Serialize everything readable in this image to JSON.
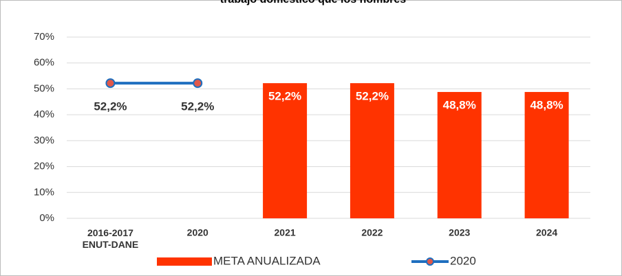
{
  "chart_data": {
    "type": "bar_line",
    "title": "trabajo doméstico que los hombres",
    "categories": [
      "2016-2017 ENUT-DANE",
      "2020",
      "2021",
      "2022",
      "2023",
      "2024"
    ],
    "series": [
      {
        "name": "META ANUALIZADA",
        "type": "bar",
        "color": "#ff3300",
        "values": [
          null,
          null,
          52.2,
          52.2,
          48.8,
          48.8
        ],
        "value_labels": [
          null,
          null,
          "52,2%",
          "52,2%",
          "48,8%",
          "48,8%"
        ]
      },
      {
        "name": "2020",
        "type": "line",
        "color": "#1f6fbf",
        "marker_color": "#e0584a",
        "values": [
          52.2,
          52.2,
          null,
          null,
          null,
          null
        ],
        "value_labels": [
          "52,2%",
          "52,2%",
          null,
          null,
          null,
          null
        ]
      }
    ],
    "ylim": [
      0,
      70
    ],
    "yticks": [
      {
        "value": 0,
        "label": "0%"
      },
      {
        "value": 10,
        "label": "10%"
      },
      {
        "value": 20,
        "label": "20%"
      },
      {
        "value": 30,
        "label": "30%"
      },
      {
        "value": 40,
        "label": "40%"
      },
      {
        "value": 50,
        "label": "50%"
      },
      {
        "value": 60,
        "label": "60%"
      },
      {
        "value": 70,
        "label": "70%"
      }
    ],
    "grid": true,
    "legend": "bottom"
  }
}
